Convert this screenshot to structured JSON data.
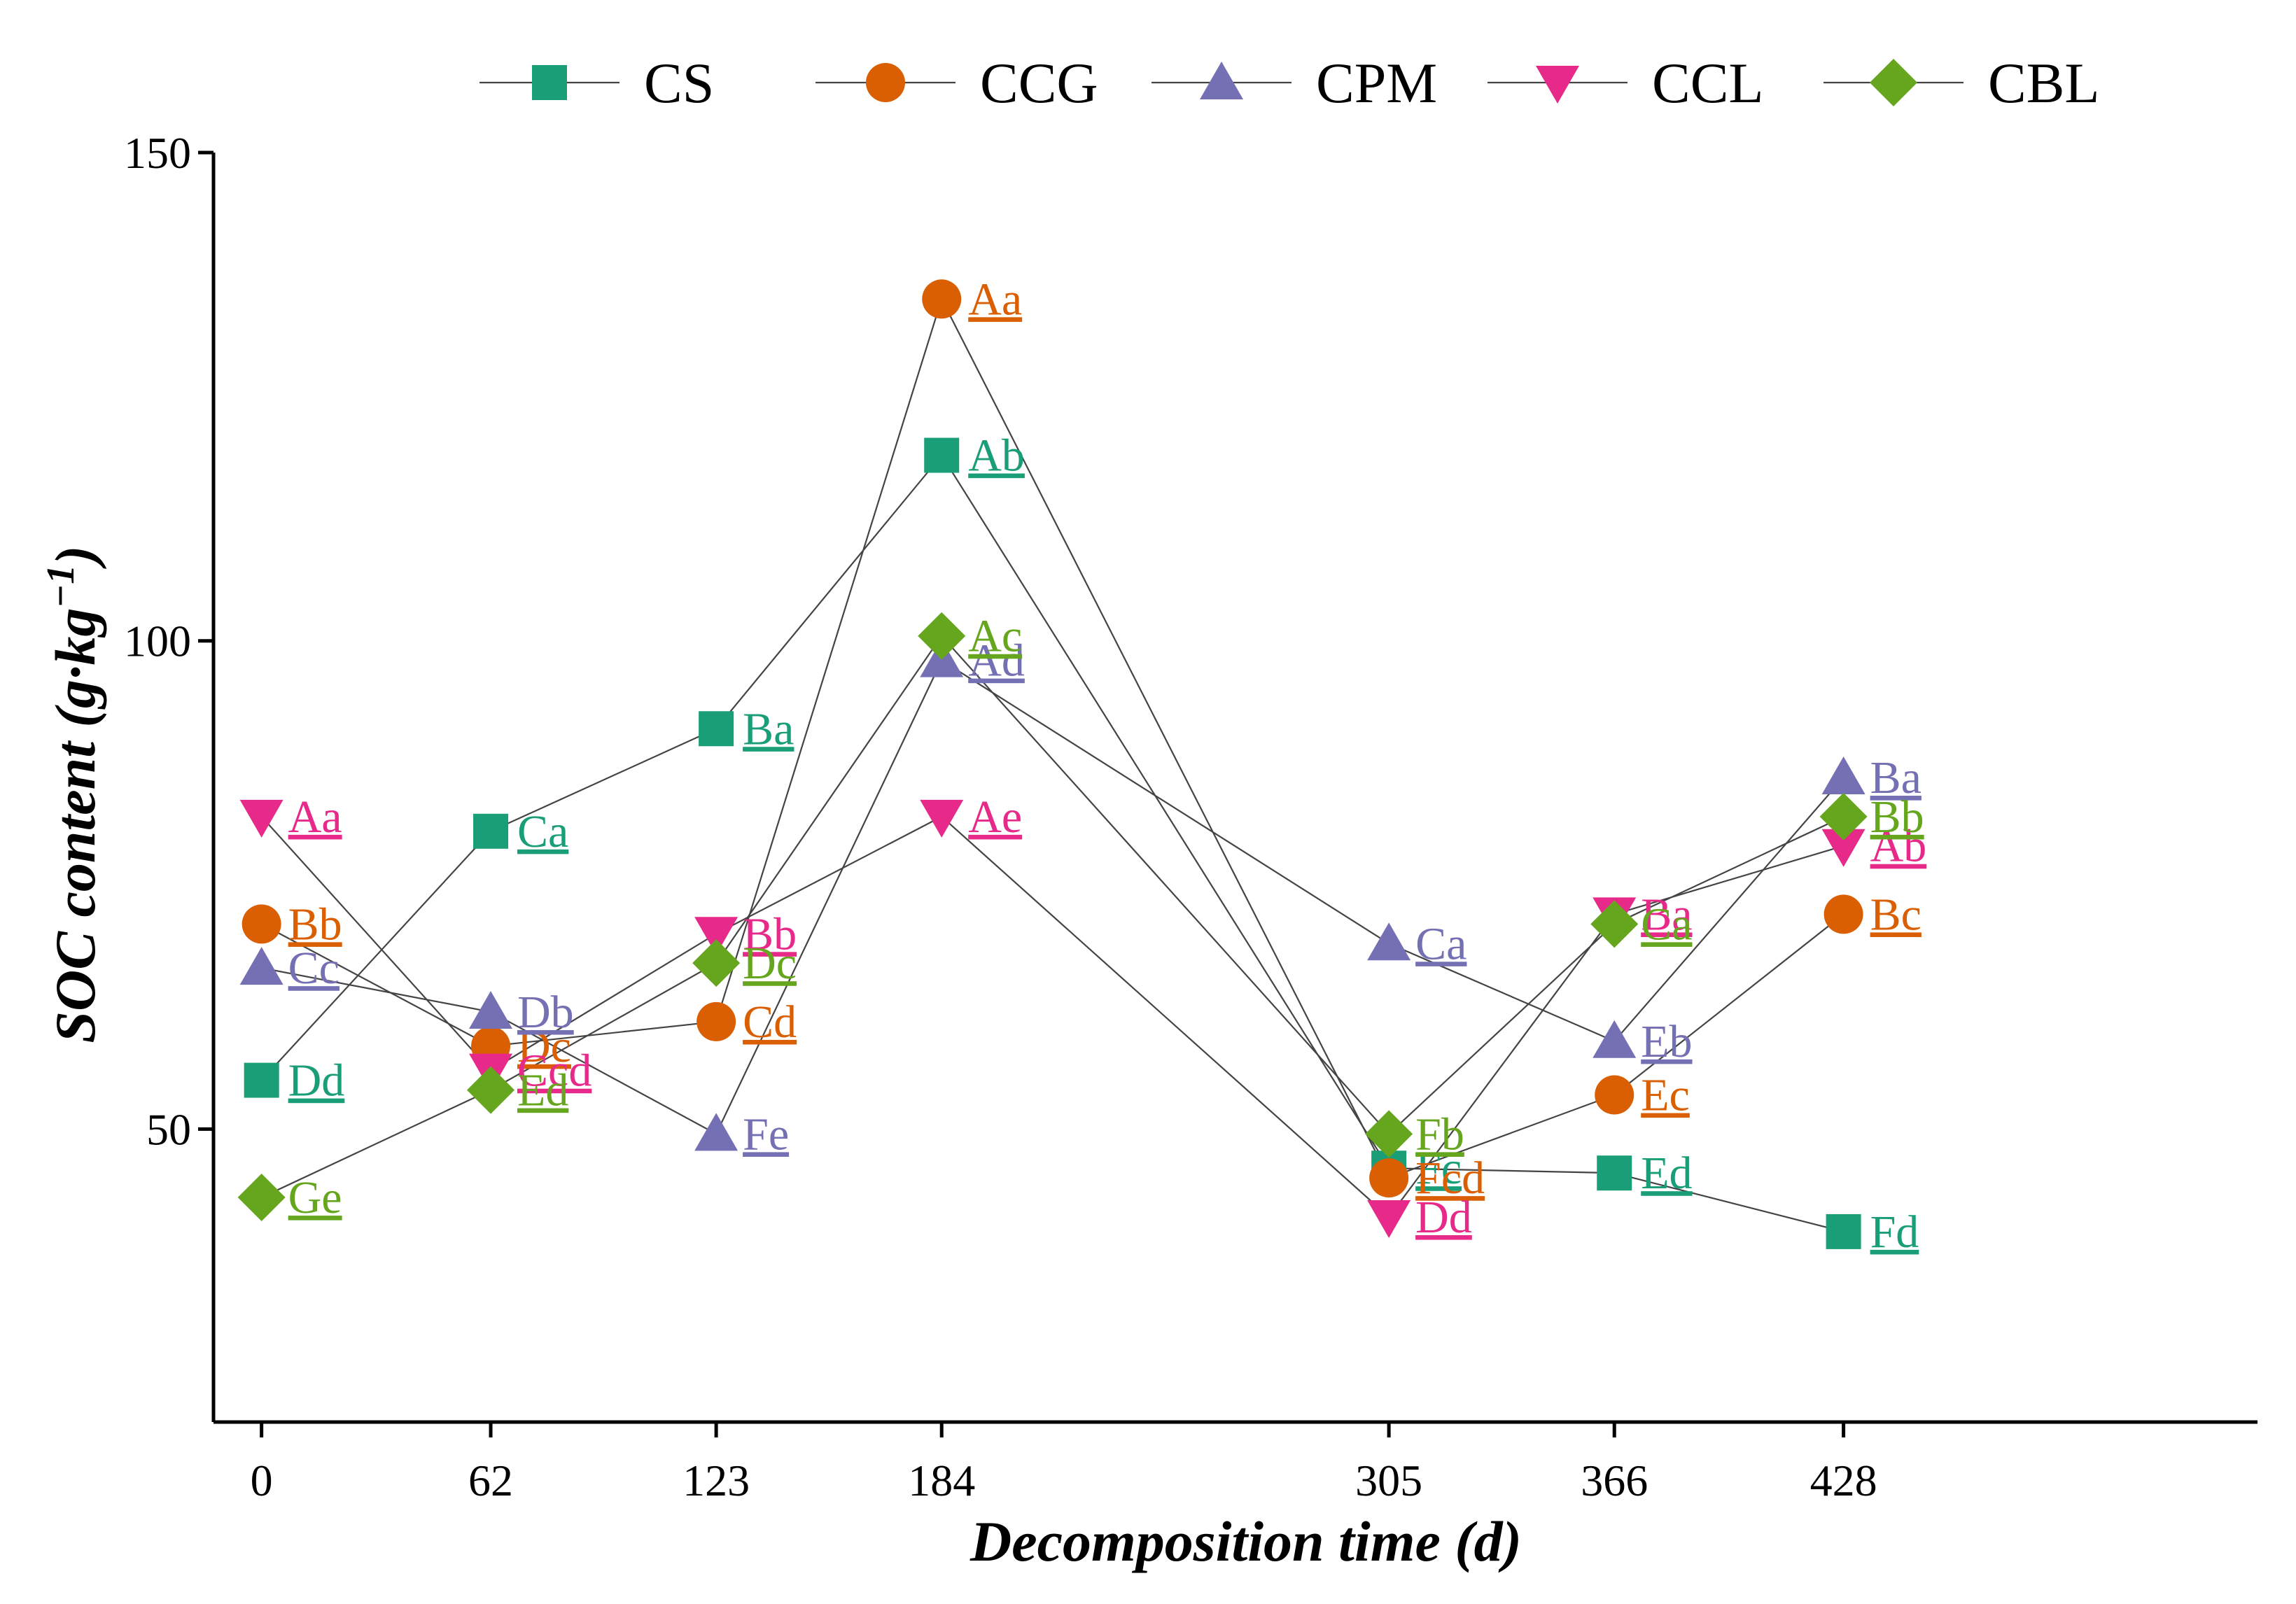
{
  "chart_data": {
    "type": "line",
    "xlabel": "Decomposition time (d)",
    "ylabel_main": "SOC content (g·kg",
    "ylabel_sup": "−1",
    "ylabel_close": ")",
    "x": [
      0,
      62,
      123,
      184,
      305,
      366,
      428
    ],
    "x_tick_labels": [
      "0",
      "62",
      "123",
      "184",
      "305",
      "366",
      "428"
    ],
    "ylim": [
      20,
      150
    ],
    "y_ticks": [
      50,
      100,
      150
    ],
    "y_tick_labels": [
      "50",
      "100",
      "150"
    ],
    "legend_position": "top",
    "series": [
      {
        "name": "CS",
        "color": "#1a9e77",
        "marker": "square",
        "values": [
          55.0,
          80.5,
          91.0,
          119.0,
          46.0,
          45.5,
          39.5
        ],
        "labels": [
          "Dd",
          "Ca",
          "Ba",
          "Ab",
          "Fc",
          "Ed",
          "Fd"
        ]
      },
      {
        "name": "CCG",
        "color": "#d95f02",
        "marker": "circle",
        "values": [
          71.0,
          58.5,
          61.0,
          135.0,
          45.0,
          53.5,
          72.0
        ],
        "labels": [
          "Bb",
          "Dc",
          "Cd",
          "Aa",
          "Fcd",
          "Ec",
          "Bc"
        ]
      },
      {
        "name": "CPM",
        "color": "#7570b3",
        "marker": "triangle-up",
        "values": [
          66.5,
          62.0,
          49.5,
          98.0,
          69.0,
          59.0,
          86.0
        ],
        "labels": [
          "Cc",
          "Db",
          "Fe",
          "Ad",
          "Ca",
          "Eb",
          "Ba"
        ]
      },
      {
        "name": "CCL",
        "color": "#e7298a",
        "marker": "triangle-down",
        "values": [
          82.0,
          56.0,
          70.0,
          82.0,
          41.0,
          72.0,
          79.0
        ],
        "labels": [
          "Aa",
          "Ccd",
          "Bb",
          "Ae",
          "Dd",
          "Ba",
          "Ab"
        ]
      },
      {
        "name": "CBL",
        "color": "#66a61e",
        "marker": "diamond",
        "values": [
          43.0,
          54.0,
          67.0,
          100.5,
          49.5,
          71.0,
          82.0
        ],
        "labels": [
          "Ge",
          "Ed",
          "Dc",
          "Ac",
          "Fb",
          "Ca",
          "Bb"
        ]
      }
    ]
  }
}
